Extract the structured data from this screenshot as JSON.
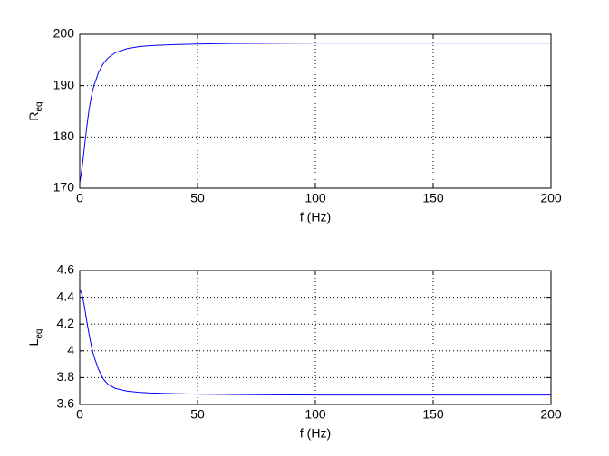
{
  "chart_data": [
    {
      "type": "line",
      "ylabel": "R",
      "ylabel_sub": "eq",
      "xlabel": "f (Hz)",
      "x": [
        0,
        1,
        2,
        3,
        4,
        5,
        6,
        8,
        10,
        12,
        15,
        20,
        25,
        30,
        40,
        50,
        60,
        80,
        100,
        150,
        200
      ],
      "series": [
        {
          "color": "#0000ff",
          "values": [
            171,
            174,
            178,
            182,
            185.5,
            188,
            190,
            192.6,
            194.3,
            195.4,
            196.4,
            197.2,
            197.6,
            197.8,
            198.0,
            198.1,
            198.2,
            198.25,
            198.3,
            198.3,
            198.3
          ]
        }
      ],
      "xlim": [
        0,
        200
      ],
      "xticks": [
        0,
        50,
        100,
        150,
        200
      ],
      "ylim": [
        170,
        200
      ],
      "yticks": [
        170,
        180,
        190,
        200
      ],
      "grid": true
    },
    {
      "type": "line",
      "ylabel": "L",
      "ylabel_sub": "eq",
      "xlabel": "f (Hz)",
      "x": [
        0,
        1,
        2,
        3,
        4,
        5,
        6,
        8,
        10,
        12,
        15,
        20,
        25,
        30,
        40,
        50,
        60,
        80,
        100,
        150,
        200
      ],
      "series": [
        {
          "color": "#0000ff",
          "values": [
            4.46,
            4.42,
            4.33,
            4.22,
            4.12,
            4.03,
            3.96,
            3.86,
            3.79,
            3.75,
            3.72,
            3.7,
            3.69,
            3.685,
            3.68,
            3.677,
            3.675,
            3.672,
            3.67,
            3.67,
            3.67
          ]
        }
      ],
      "xlim": [
        0,
        200
      ],
      "xticks": [
        0,
        50,
        100,
        150,
        200
      ],
      "ylim": [
        3.6,
        4.6
      ],
      "yticks": [
        3.6,
        3.8,
        4,
        4.2,
        4.4,
        4.6
      ],
      "grid": true
    }
  ]
}
